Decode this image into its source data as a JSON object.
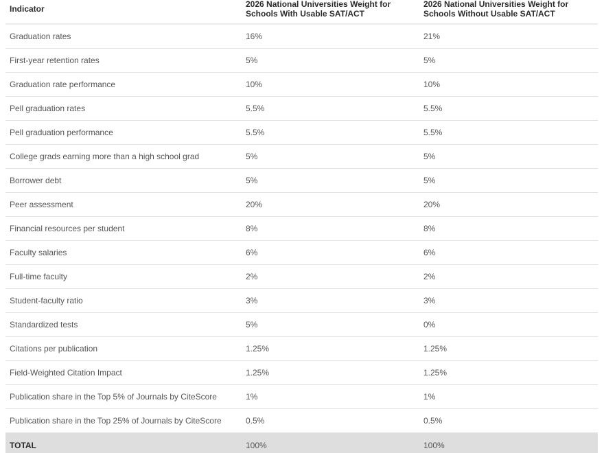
{
  "table": {
    "headers": [
      "Indicator",
      "2026 National Universities Weight for Schools With Usable SAT/ACT",
      "2026 National Universities Weight for Schools Without Usable SAT/ACT"
    ],
    "rows": [
      {
        "indicator": "Graduation rates",
        "with_sat": "16%",
        "without_sat": "21%"
      },
      {
        "indicator": "First-year retention rates",
        "with_sat": "5%",
        "without_sat": "5%"
      },
      {
        "indicator": "Graduation rate performance",
        "with_sat": "10%",
        "without_sat": "10%"
      },
      {
        "indicator": "Pell graduation rates",
        "with_sat": "5.5%",
        "without_sat": "5.5%"
      },
      {
        "indicator": "Pell graduation performance",
        "with_sat": "5.5%",
        "without_sat": "5.5%"
      },
      {
        "indicator": "College grads earning more than a high school grad",
        "with_sat": "5%",
        "without_sat": "5%"
      },
      {
        "indicator": "Borrower debt",
        "with_sat": "5%",
        "without_sat": "5%"
      },
      {
        "indicator": "Peer assessment",
        "with_sat": "20%",
        "without_sat": "20%"
      },
      {
        "indicator": "Financial resources per student",
        "with_sat": "8%",
        "without_sat": "8%"
      },
      {
        "indicator": "Faculty salaries",
        "with_sat": "6%",
        "without_sat": "6%"
      },
      {
        "indicator": "Full-time faculty",
        "with_sat": "2%",
        "without_sat": "2%"
      },
      {
        "indicator": "Student-faculty ratio",
        "with_sat": "3%",
        "without_sat": "3%"
      },
      {
        "indicator": "Standardized tests",
        "with_sat": "5%",
        "without_sat": "0%"
      },
      {
        "indicator": "Citations per publication",
        "with_sat": "1.25%",
        "without_sat": "1.25%"
      },
      {
        "indicator": "Field-Weighted Citation Impact",
        "with_sat": "1.25%",
        "without_sat": "1.25%"
      },
      {
        "indicator": "Publication share in the Top 5% of Journals by CiteScore",
        "with_sat": "1%",
        "without_sat": "1%"
      },
      {
        "indicator": "Publication share in the Top 25% of Journals by CiteScore",
        "with_sat": "0.5%",
        "without_sat": "0.5%"
      }
    ],
    "total": {
      "indicator": "TOTAL",
      "with_sat": "100%",
      "without_sat": "100%"
    }
  },
  "colors": {
    "total_row_bg": "#dedede",
    "divider": "#e3e3e3",
    "header_text": "#2b2b2b",
    "body_text": "#555555"
  }
}
